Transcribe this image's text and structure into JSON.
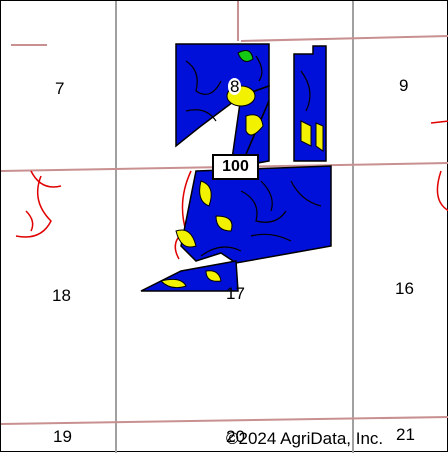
{
  "map": {
    "sections": [
      {
        "id": "s7",
        "label": "7"
      },
      {
        "id": "s8",
        "label": "8"
      },
      {
        "id": "s9",
        "label": "9"
      },
      {
        "id": "s16",
        "label": "16"
      },
      {
        "id": "s17",
        "label": "17"
      },
      {
        "id": "s18",
        "label": "18"
      },
      {
        "id": "s19",
        "label": "19"
      },
      {
        "id": "s20",
        "label": "20"
      },
      {
        "id": "s21",
        "label": "21"
      }
    ],
    "road_shield": "100",
    "copyright": "©2024 AgriData, Inc.",
    "colors": {
      "soil_primary": "#0010d8",
      "soil_secondary": "#f2f200",
      "soil_tertiary": "#14c814",
      "grid_line": "#a0a0a0",
      "road_line": "#c89090",
      "boundary": "#e00000"
    }
  }
}
